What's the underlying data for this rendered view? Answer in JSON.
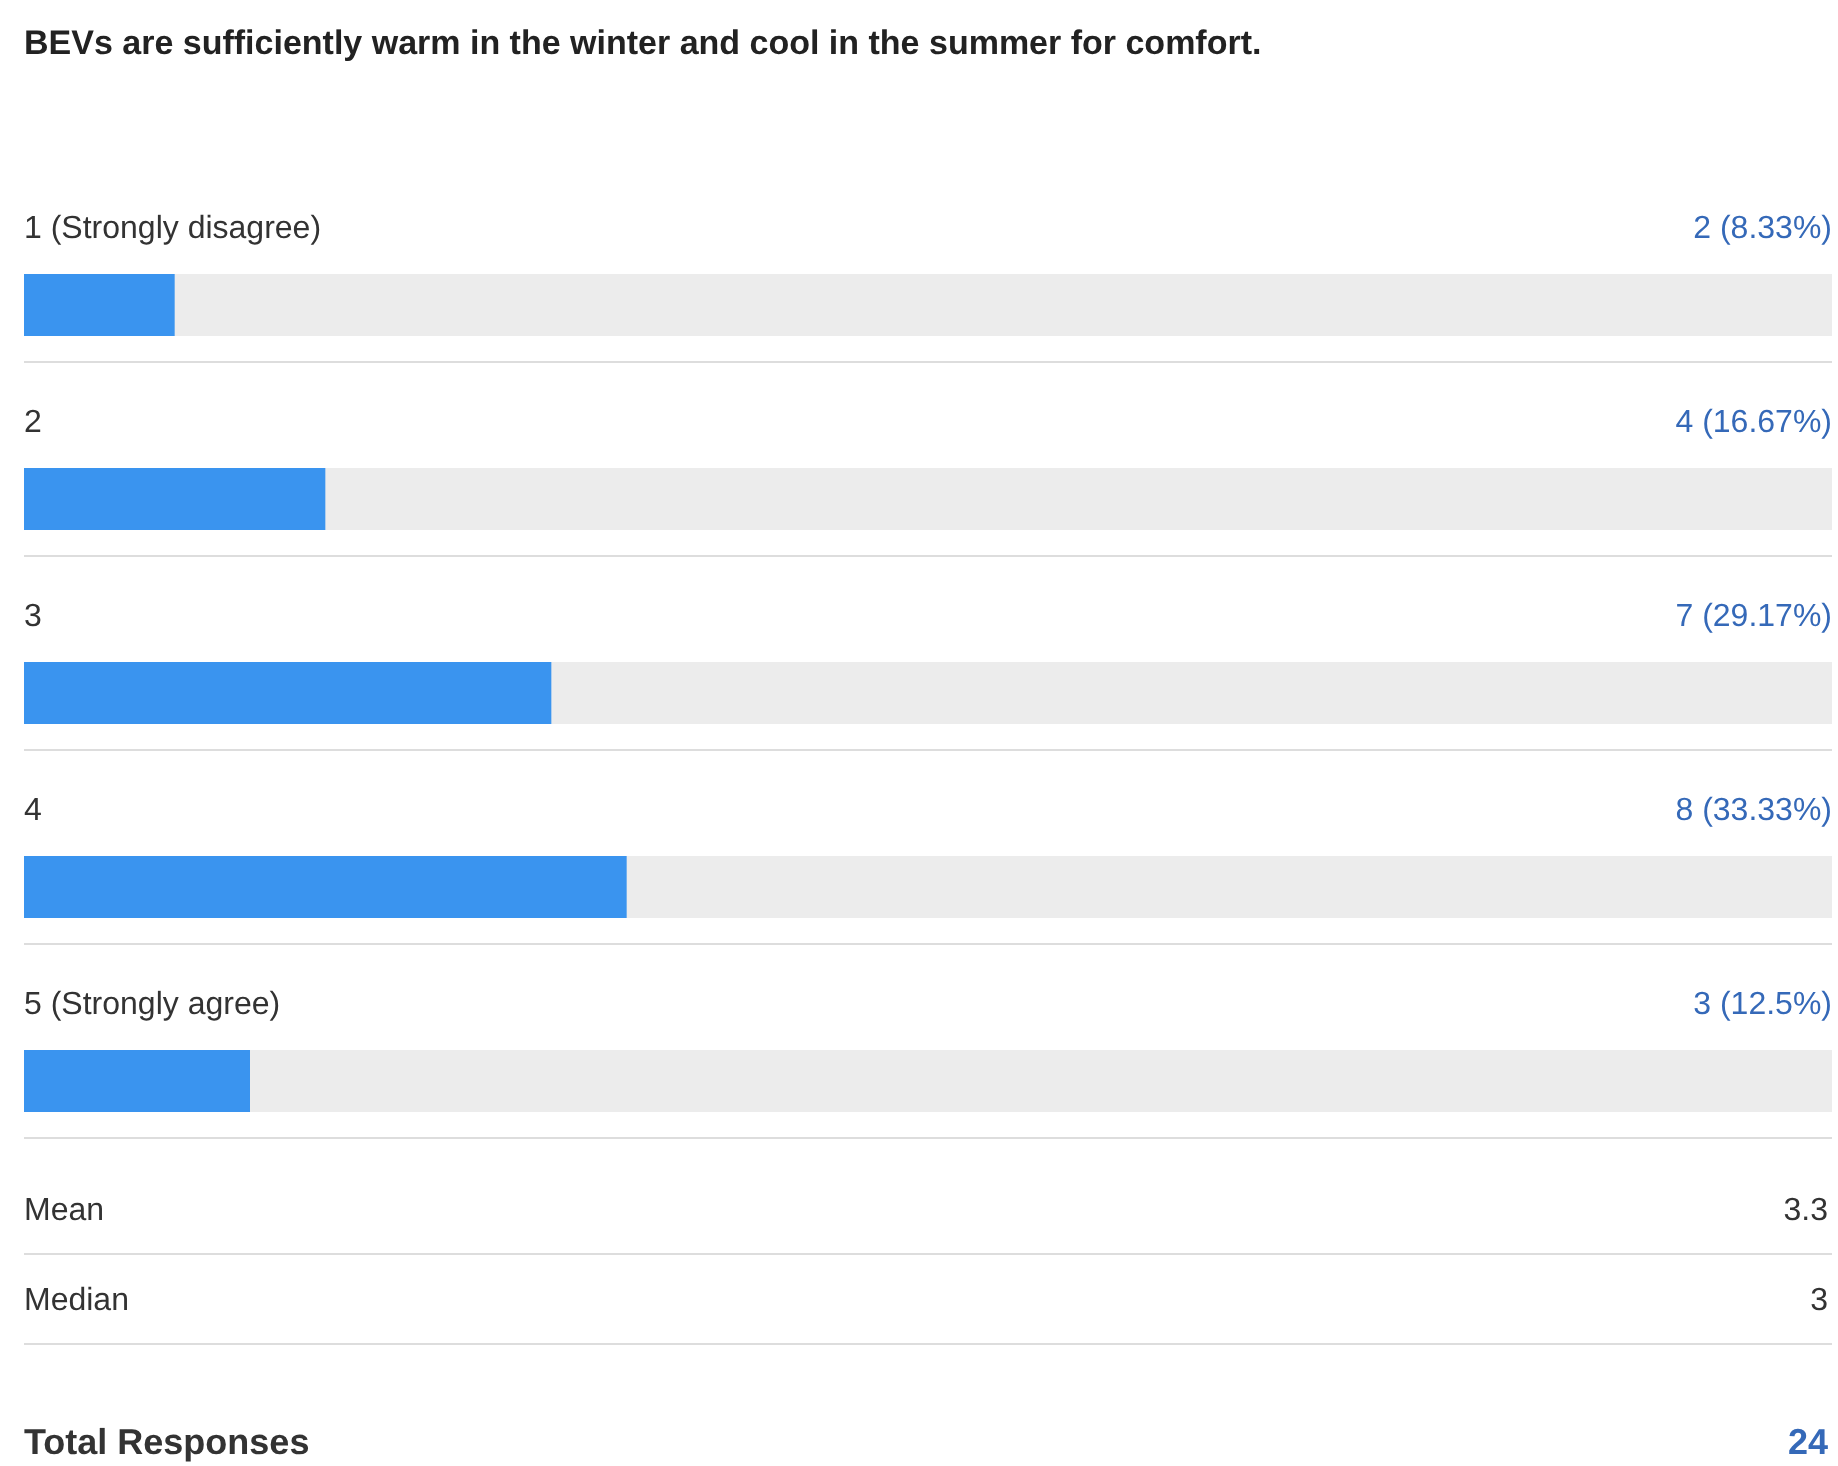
{
  "chart_data": {
    "type": "bar",
    "orientation": "horizontal",
    "title": "BEVs are sufficiently warm in the winter and cool in the summer for comfort.",
    "categories": [
      "1 (Strongly disagree)",
      "2",
      "3",
      "4",
      "5 (Strongly agree)"
    ],
    "values": [
      2,
      4,
      7,
      8,
      3
    ],
    "value_labels": [
      "2 (8.33%)",
      "4 (16.67%)",
      "7 (29.17%)",
      "8 (33.33%)",
      "3 (12.5%)"
    ],
    "color": "#3a94ef",
    "xlim": [
      0,
      24
    ],
    "annotations": [
      "Mean",
      "3.3",
      "Median",
      "3",
      "Total Responses",
      "24"
    ]
  }
}
